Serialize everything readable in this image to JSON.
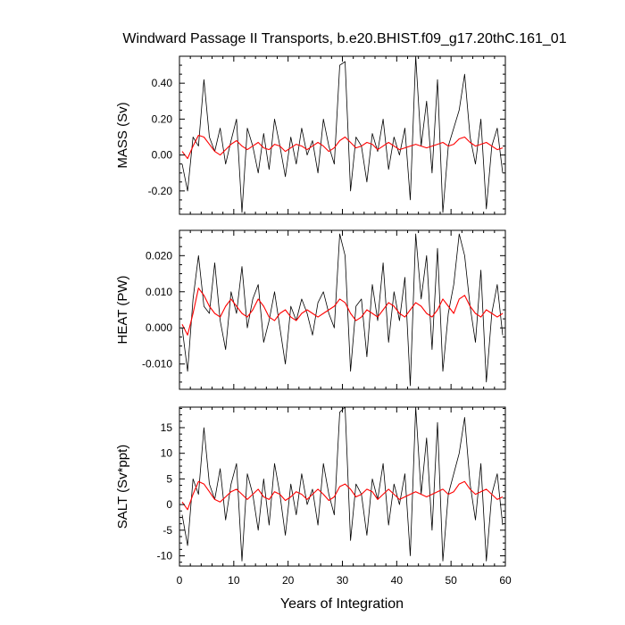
{
  "title": "Windward Passage II Transports, b.e20.BHIST.f09_g17.20thC.161_01",
  "xlabel": "Years of Integration",
  "colors": {
    "monthly": "#000000",
    "smoothed": "#ff0000",
    "frame": "#000000"
  },
  "chart_data": [
    {
      "type": "line",
      "ylabel": "MASS (Sv)",
      "xlim": [
        0,
        60
      ],
      "ylim": [
        -0.33,
        0.55
      ],
      "yticks": [
        -0.2,
        0.0,
        0.2,
        0.4
      ],
      "ytick_labels": [
        "-0.20",
        "0.00",
        "0.20",
        "0.40"
      ],
      "xticks": [
        0,
        10,
        20,
        30,
        40,
        50,
        60
      ],
      "xtick_labels": [
        "0",
        "10",
        "20",
        "30",
        "40",
        "50",
        "60"
      ],
      "show_xtick_labels": false,
      "series": [
        {
          "style": "thin-black",
          "x": [
            0.5,
            1.5,
            2.5,
            3.5,
            4.5,
            5.5,
            6.5,
            7.5,
            8.5,
            9.5,
            10.5,
            11.5,
            12.5,
            13.5,
            14.5,
            15.5,
            16.5,
            17.5,
            18.5,
            19.5,
            20.5,
            21.5,
            22.5,
            23.5,
            24.5,
            25.5,
            26.5,
            27.5,
            28.5,
            29.5,
            30.5,
            31.5,
            32.5,
            33.5,
            34.5,
            35.5,
            36.5,
            37.5,
            38.5,
            39.5,
            40.5,
            41.5,
            42.5,
            43.5,
            44.5,
            45.5,
            46.5,
            47.5,
            48.5,
            49.5,
            50.5,
            51.5,
            52.5,
            53.5,
            54.5,
            55.5,
            56.5,
            57.5,
            58.5,
            59.5
          ],
          "y": [
            -0.05,
            -0.2,
            0.1,
            0.05,
            0.42,
            0.1,
            0.02,
            0.15,
            -0.05,
            0.08,
            0.2,
            -0.32,
            0.15,
            0.05,
            -0.1,
            0.12,
            -0.08,
            0.2,
            0.05,
            -0.12,
            0.1,
            -0.05,
            0.15,
            0.0,
            0.08,
            -0.1,
            0.2,
            0.05,
            -0.05,
            0.5,
            0.52,
            -0.2,
            0.1,
            0.05,
            -0.15,
            0.12,
            0.02,
            0.2,
            -0.08,
            0.1,
            0.0,
            0.15,
            -0.25,
            0.55,
            0.05,
            0.3,
            -0.1,
            0.42,
            -0.32,
            0.05,
            0.15,
            0.25,
            0.45,
            0.1,
            -0.05,
            0.2,
            -0.3,
            0.05,
            0.15,
            -0.1
          ]
        },
        {
          "style": "smoothed-red",
          "x": [
            0.5,
            1.5,
            2.5,
            3.5,
            4.5,
            5.5,
            6.5,
            7.5,
            8.5,
            9.5,
            10.5,
            11.5,
            12.5,
            13.5,
            14.5,
            15.5,
            16.5,
            17.5,
            18.5,
            19.5,
            20.5,
            21.5,
            22.5,
            23.5,
            24.5,
            25.5,
            26.5,
            27.5,
            28.5,
            29.5,
            30.5,
            31.5,
            32.5,
            33.5,
            34.5,
            35.5,
            36.5,
            37.5,
            38.5,
            39.5,
            40.5,
            41.5,
            42.5,
            43.5,
            44.5,
            45.5,
            46.5,
            47.5,
            48.5,
            49.5,
            50.5,
            51.5,
            52.5,
            53.5,
            54.5,
            55.5,
            56.5,
            57.5,
            58.5,
            59.5
          ],
          "y": [
            0.02,
            -0.02,
            0.05,
            0.11,
            0.1,
            0.06,
            0.02,
            0.0,
            0.03,
            0.06,
            0.08,
            0.05,
            0.03,
            0.05,
            0.07,
            0.04,
            0.03,
            0.06,
            0.05,
            0.02,
            0.04,
            0.06,
            0.05,
            0.03,
            0.05,
            0.07,
            0.05,
            0.02,
            0.04,
            0.08,
            0.1,
            0.07,
            0.04,
            0.05,
            0.07,
            0.06,
            0.03,
            0.05,
            0.07,
            0.05,
            0.03,
            0.04,
            0.05,
            0.06,
            0.05,
            0.04,
            0.05,
            0.06,
            0.07,
            0.05,
            0.06,
            0.09,
            0.1,
            0.07,
            0.05,
            0.06,
            0.07,
            0.05,
            0.03,
            0.04
          ]
        }
      ]
    },
    {
      "type": "line",
      "ylabel": "HEAT (PW)",
      "xlim": [
        0,
        60
      ],
      "ylim": [
        -0.017,
        0.027
      ],
      "yticks": [
        -0.01,
        0.0,
        0.01,
        0.02
      ],
      "ytick_labels": [
        "-0.010",
        "0.000",
        "0.010",
        "0.020"
      ],
      "xticks": [
        0,
        10,
        20,
        30,
        40,
        50,
        60
      ],
      "xtick_labels": [
        "0",
        "10",
        "20",
        "30",
        "40",
        "50",
        "60"
      ],
      "show_xtick_labels": false,
      "series": [
        {
          "style": "thin-black",
          "x": [
            0.5,
            1.5,
            2.5,
            3.5,
            4.5,
            5.5,
            6.5,
            7.5,
            8.5,
            9.5,
            10.5,
            11.5,
            12.5,
            13.5,
            14.5,
            15.5,
            16.5,
            17.5,
            18.5,
            19.5,
            20.5,
            21.5,
            22.5,
            23.5,
            24.5,
            25.5,
            26.5,
            27.5,
            28.5,
            29.5,
            30.5,
            31.5,
            32.5,
            33.5,
            34.5,
            35.5,
            36.5,
            37.5,
            38.5,
            39.5,
            40.5,
            41.5,
            42.5,
            43.5,
            44.5,
            45.5,
            46.5,
            47.5,
            48.5,
            49.5,
            50.5,
            51.5,
            52.5,
            53.5,
            54.5,
            55.5,
            56.5,
            57.5,
            58.5,
            59.5
          ],
          "y": [
            0.0,
            -0.012,
            0.008,
            0.02,
            0.006,
            0.004,
            0.018,
            0.002,
            -0.006,
            0.01,
            0.004,
            0.017,
            0.0,
            0.008,
            0.012,
            -0.004,
            0.002,
            0.01,
            0.0,
            -0.01,
            0.006,
            0.002,
            0.008,
            0.004,
            -0.002,
            0.007,
            0.01,
            0.004,
            0.0,
            0.026,
            0.02,
            -0.012,
            0.006,
            0.008,
            -0.008,
            0.012,
            0.002,
            0.018,
            -0.004,
            0.01,
            0.002,
            0.014,
            -0.016,
            0.026,
            0.008,
            0.02,
            -0.006,
            0.022,
            -0.012,
            0.004,
            0.012,
            0.026,
            0.02,
            0.006,
            -0.004,
            0.016,
            -0.015,
            0.004,
            0.012,
            -0.002
          ]
        },
        {
          "style": "smoothed-red",
          "x": [
            0.5,
            1.5,
            2.5,
            3.5,
            4.5,
            5.5,
            6.5,
            7.5,
            8.5,
            9.5,
            10.5,
            11.5,
            12.5,
            13.5,
            14.5,
            15.5,
            16.5,
            17.5,
            18.5,
            19.5,
            20.5,
            21.5,
            22.5,
            23.5,
            24.5,
            25.5,
            26.5,
            27.5,
            28.5,
            29.5,
            30.5,
            31.5,
            32.5,
            33.5,
            34.5,
            35.5,
            36.5,
            37.5,
            38.5,
            39.5,
            40.5,
            41.5,
            42.5,
            43.5,
            44.5,
            45.5,
            46.5,
            47.5,
            48.5,
            49.5,
            50.5,
            51.5,
            52.5,
            53.5,
            54.5,
            55.5,
            56.5,
            57.5,
            58.5,
            59.5
          ],
          "y": [
            0.001,
            -0.002,
            0.004,
            0.011,
            0.009,
            0.006,
            0.004,
            0.003,
            0.006,
            0.008,
            0.006,
            0.004,
            0.003,
            0.005,
            0.008,
            0.006,
            0.003,
            0.002,
            0.004,
            0.005,
            0.003,
            0.002,
            0.004,
            0.005,
            0.004,
            0.003,
            0.004,
            0.005,
            0.006,
            0.008,
            0.007,
            0.004,
            0.002,
            0.003,
            0.005,
            0.004,
            0.003,
            0.005,
            0.007,
            0.006,
            0.004,
            0.003,
            0.005,
            0.007,
            0.006,
            0.004,
            0.003,
            0.005,
            0.008,
            0.006,
            0.004,
            0.008,
            0.009,
            0.006,
            0.004,
            0.003,
            0.005,
            0.004,
            0.003,
            0.004
          ]
        }
      ]
    },
    {
      "type": "line",
      "ylabel": "SALT (Sv*ppt)",
      "xlim": [
        0,
        60
      ],
      "ylim": [
        -12,
        19
      ],
      "yticks": [
        -10,
        -5,
        0,
        5,
        10,
        15
      ],
      "ytick_labels": [
        "-10",
        "-5",
        "0",
        "5",
        "10",
        "15"
      ],
      "xticks": [
        0,
        10,
        20,
        30,
        40,
        50,
        60
      ],
      "xtick_labels": [
        "0",
        "10",
        "20",
        "30",
        "40",
        "50",
        "60"
      ],
      "show_xtick_labels": true,
      "series": [
        {
          "style": "thin-black",
          "x": [
            0.5,
            1.5,
            2.5,
            3.5,
            4.5,
            5.5,
            6.5,
            7.5,
            8.5,
            9.5,
            10.5,
            11.5,
            12.5,
            13.5,
            14.5,
            15.5,
            16.5,
            17.5,
            18.5,
            19.5,
            20.5,
            21.5,
            22.5,
            23.5,
            24.5,
            25.5,
            26.5,
            27.5,
            28.5,
            29.5,
            30.5,
            31.5,
            32.5,
            33.5,
            34.5,
            35.5,
            36.5,
            37.5,
            38.5,
            39.5,
            40.5,
            41.5,
            42.5,
            43.5,
            44.5,
            45.5,
            46.5,
            47.5,
            48.5,
            49.5,
            50.5,
            51.5,
            52.5,
            53.5,
            54.5,
            55.5,
            56.5,
            57.5,
            58.5,
            59.5
          ],
          "y": [
            -2,
            -8,
            5,
            2,
            15,
            4,
            1,
            7,
            -3,
            4,
            8,
            -11,
            6,
            2,
            -5,
            5,
            -4,
            8,
            2,
            -6,
            4,
            -2,
            6,
            0,
            3,
            -4,
            8,
            2,
            -2,
            18,
            19,
            -7,
            4,
            2,
            -6,
            5,
            1,
            8,
            -4,
            4,
            0,
            6,
            -10,
            19,
            2,
            13,
            -5,
            16,
            -11,
            2,
            6,
            10,
            17,
            4,
            -3,
            8,
            -11,
            2,
            6,
            -4
          ]
        },
        {
          "style": "smoothed-red",
          "x": [
            0.5,
            1.5,
            2.5,
            3.5,
            4.5,
            5.5,
            6.5,
            7.5,
            8.5,
            9.5,
            10.5,
            11.5,
            12.5,
            13.5,
            14.5,
            15.5,
            16.5,
            17.5,
            18.5,
            19.5,
            20.5,
            21.5,
            22.5,
            23.5,
            24.5,
            25.5,
            26.5,
            27.5,
            28.5,
            29.5,
            30.5,
            31.5,
            32.5,
            33.5,
            34.5,
            35.5,
            36.5,
            37.5,
            38.5,
            39.5,
            40.5,
            41.5,
            42.5,
            43.5,
            44.5,
            45.5,
            46.5,
            47.5,
            48.5,
            49.5,
            50.5,
            51.5,
            52.5,
            53.5,
            54.5,
            55.5,
            56.5,
            57.5,
            58.5,
            59.5
          ],
          "y": [
            0.5,
            -1,
            2,
            4.5,
            4,
            2.5,
            1,
            0.5,
            1.5,
            2.5,
            3,
            2,
            1,
            2,
            3,
            1.5,
            1,
            2.5,
            2,
            0.8,
            1.5,
            2.5,
            2,
            1,
            2,
            3,
            2,
            0.8,
            1.5,
            3.5,
            4,
            3,
            1.5,
            2,
            3,
            2.5,
            1,
            2,
            3,
            2,
            1,
            1.5,
            2,
            2.5,
            2,
            1.5,
            2,
            2.5,
            3,
            2,
            2.5,
            4,
            4.5,
            3,
            2,
            2.5,
            3,
            2,
            1,
            1.5
          ]
        }
      ]
    }
  ]
}
